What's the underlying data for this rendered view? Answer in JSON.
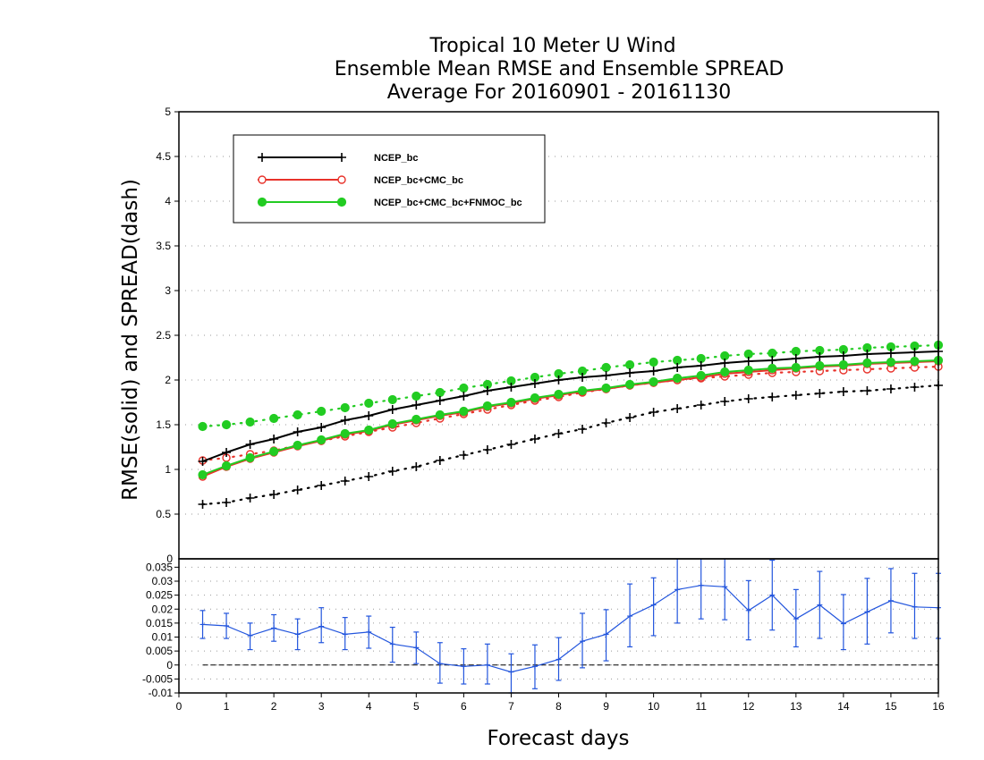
{
  "chart_data": [
    {
      "type": "line",
      "title": [
        "Tropical 10 Meter U Wind",
        "Ensemble Mean RMSE and Ensemble SPREAD",
        "Average For 20160901 - 20161130"
      ],
      "xlabel": "Forecast days",
      "ylabel": "RMSE(solid) and SPREAD(dash)",
      "xlim": [
        0,
        16
      ],
      "ylim": [
        0,
        5
      ],
      "yticks": [
        "0.5",
        "1",
        "1.5",
        "2",
        "2.5",
        "3",
        "3.5",
        "4",
        "4.5",
        "5"
      ],
      "grid": "horizontal dotted",
      "legend_position": "top-left",
      "x": [
        0.5,
        1,
        1.5,
        2,
        2.5,
        3,
        3.5,
        4,
        4.5,
        5,
        5.5,
        6,
        6.5,
        7,
        7.5,
        8,
        8.5,
        9,
        9.5,
        10,
        10.5,
        11,
        11.5,
        12,
        12.5,
        13,
        13.5,
        14,
        14.5,
        15,
        15.5,
        16
      ],
      "series": [
        {
          "name": "NCEP_bc",
          "kind": "rmse",
          "marker": "plus",
          "color": "#000000",
          "values": [
            1.09,
            1.19,
            1.28,
            1.34,
            1.42,
            1.47,
            1.55,
            1.6,
            1.67,
            1.72,
            1.77,
            1.82,
            1.88,
            1.92,
            1.96,
            2.0,
            2.03,
            2.05,
            2.08,
            2.1,
            2.14,
            2.16,
            2.19,
            2.21,
            2.22,
            2.24,
            2.26,
            2.27,
            2.29,
            2.3,
            2.31,
            2.32
          ]
        },
        {
          "name": "NCEP_bc+CMC_bc",
          "kind": "rmse",
          "marker": "open-circle",
          "color": "#e8322a",
          "values": [
            0.92,
            1.03,
            1.12,
            1.19,
            1.26,
            1.32,
            1.39,
            1.43,
            1.5,
            1.55,
            1.6,
            1.64,
            1.7,
            1.74,
            1.79,
            1.83,
            1.87,
            1.9,
            1.94,
            1.97,
            2.0,
            2.03,
            2.07,
            2.09,
            2.11,
            2.13,
            2.15,
            2.16,
            2.18,
            2.19,
            2.2,
            2.21
          ]
        },
        {
          "name": "NCEP_bc+CMC_bc+FNMOC_bc",
          "kind": "rmse",
          "marker": "filled-circle",
          "color": "#22cc22",
          "values": [
            0.94,
            1.04,
            1.13,
            1.2,
            1.27,
            1.33,
            1.4,
            1.44,
            1.51,
            1.56,
            1.61,
            1.65,
            1.71,
            1.75,
            1.8,
            1.84,
            1.88,
            1.91,
            1.95,
            1.98,
            2.02,
            2.05,
            2.09,
            2.11,
            2.13,
            2.14,
            2.16,
            2.17,
            2.19,
            2.2,
            2.21,
            2.22
          ]
        },
        {
          "name": "NCEP_bc",
          "kind": "spread",
          "marker": "plus",
          "color": "#000000",
          "values": [
            0.61,
            0.63,
            0.68,
            0.72,
            0.77,
            0.82,
            0.87,
            0.92,
            0.98,
            1.03,
            1.1,
            1.16,
            1.22,
            1.28,
            1.34,
            1.4,
            1.45,
            1.52,
            1.58,
            1.64,
            1.68,
            1.72,
            1.76,
            1.79,
            1.81,
            1.83,
            1.85,
            1.87,
            1.88,
            1.9,
            1.92,
            1.94
          ]
        },
        {
          "name": "NCEP_bc+CMC_bc",
          "kind": "spread",
          "marker": "open-circle",
          "color": "#e8322a",
          "values": [
            1.1,
            1.13,
            1.17,
            1.21,
            1.27,
            1.32,
            1.37,
            1.42,
            1.47,
            1.52,
            1.57,
            1.62,
            1.67,
            1.72,
            1.77,
            1.81,
            1.86,
            1.9,
            1.94,
            1.97,
            2.0,
            2.02,
            2.04,
            2.06,
            2.08,
            2.09,
            2.1,
            2.11,
            2.12,
            2.13,
            2.14,
            2.15
          ]
        },
        {
          "name": "NCEP_bc+CMC_bc+FNMOC_bc",
          "kind": "spread",
          "marker": "filled-circle",
          "color": "#22cc22",
          "values": [
            1.48,
            1.5,
            1.53,
            1.57,
            1.61,
            1.65,
            1.69,
            1.74,
            1.78,
            1.82,
            1.86,
            1.91,
            1.95,
            1.99,
            2.03,
            2.07,
            2.1,
            2.14,
            2.17,
            2.2,
            2.22,
            2.24,
            2.27,
            2.29,
            2.3,
            2.32,
            2.33,
            2.34,
            2.36,
            2.37,
            2.38,
            2.39
          ]
        }
      ]
    },
    {
      "type": "line",
      "xlabel": "Forecast days",
      "xlim": [
        0,
        16
      ],
      "xticks": [
        "0",
        "1",
        "2",
        "3",
        "4",
        "5",
        "6",
        "7",
        "8",
        "9",
        "10",
        "11",
        "12",
        "13",
        "14",
        "15",
        "16"
      ],
      "ylim": [
        -0.01,
        0.038
      ],
      "yticks": [
        "-0.01",
        "-0.005",
        "0",
        "0.005",
        "0.01",
        "0.015",
        "0.02",
        "0.025",
        "0.03",
        "0.035"
      ],
      "top_label": "0",
      "grid": "horizontal dotted",
      "zero_line": 0,
      "x": [
        0.5,
        1,
        1.5,
        2,
        2.5,
        3,
        3.5,
        4,
        4.5,
        5,
        5.5,
        6,
        6.5,
        7,
        7.5,
        8,
        8.5,
        9,
        9.5,
        10,
        10.5,
        11,
        11.5,
        12,
        12.5,
        13,
        13.5,
        14,
        14.5,
        15,
        15.5,
        16
      ],
      "series": [
        {
          "color": "#2255dd",
          "values": [
            0.0145,
            0.014,
            0.0105,
            0.0132,
            0.011,
            0.0138,
            0.011,
            0.0118,
            0.0075,
            0.0062,
            0.0005,
            -0.0005,
            0.0,
            -0.0025,
            -0.0005,
            0.002,
            0.0085,
            0.011,
            0.0175,
            0.0215,
            0.027,
            0.0285,
            0.028,
            0.0195,
            0.025,
            0.0165,
            0.0215,
            0.0148,
            0.019,
            0.023,
            0.0208,
            0.0205
          ],
          "err_low": [
            0.0095,
            0.0095,
            0.0055,
            0.0085,
            0.0055,
            0.008,
            0.0055,
            0.006,
            0.001,
            0.0005,
            -0.0065,
            -0.0068,
            -0.0068,
            -0.01,
            -0.0085,
            -0.0055,
            -0.001,
            0.0015,
            0.0065,
            0.0105,
            0.015,
            0.0165,
            0.0162,
            0.009,
            0.0125,
            0.0065,
            0.0095,
            0.0055,
            0.0075,
            0.0115,
            0.0095,
            0.0095
          ],
          "err_high": [
            0.0195,
            0.0185,
            0.015,
            0.018,
            0.0165,
            0.0205,
            0.017,
            0.0175,
            0.0135,
            0.0118,
            0.008,
            0.0058,
            0.0075,
            0.004,
            0.0072,
            0.0098,
            0.0185,
            0.0198,
            0.029,
            0.0312,
            0.0395,
            0.0392,
            0.04,
            0.0302,
            0.0375,
            0.027,
            0.0335,
            0.0252,
            0.031,
            0.0345,
            0.0328,
            0.0328
          ]
        }
      ]
    }
  ]
}
